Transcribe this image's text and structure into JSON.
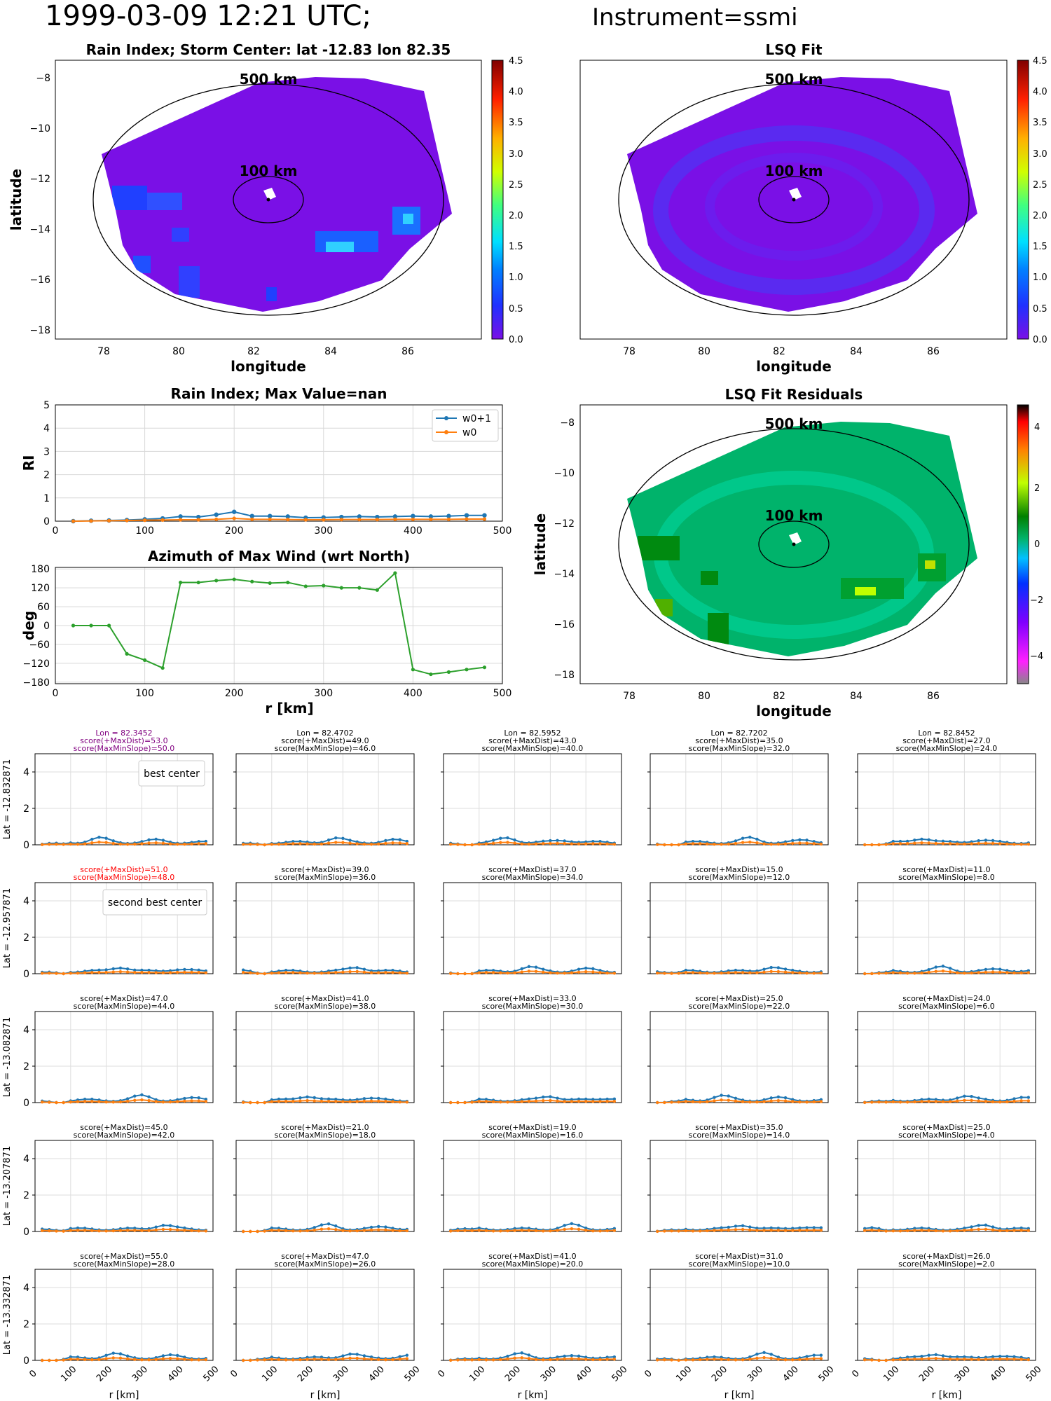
{
  "figure": {
    "title_main": "1999-03-09 12:21 UTC;",
    "title_instr": "Instrument=ssmi"
  },
  "maps": {
    "rain_title": "Rain Index; Storm Center: lat -12.83 lon 82.35",
    "lsq_title": "LSQ Fit",
    "resid_title": "LSQ Fit Residuals",
    "xlabel": "longitude",
    "ylabel": "latitude",
    "label_500": "500 km",
    "label_100": "100 km",
    "lon_ticks": [
      "78",
      "80",
      "82",
      "84",
      "86"
    ],
    "lat_ticks": [
      "−8",
      "−10",
      "−12",
      "−14",
      "−16",
      "−18"
    ],
    "colorbar_ticks": [
      "0.0",
      "0.5",
      "1.0",
      "1.5",
      "2.0",
      "2.5",
      "3.0",
      "3.5",
      "4.0",
      "4.5"
    ],
    "resid_colorbar_ticks": [
      "4",
      "2",
      "0",
      "−2",
      "−4"
    ],
    "colors": {
      "rain_bg": "#7a10e6",
      "resid_bg": "#00b36b"
    }
  },
  "chart_data": [
    {
      "type": "line",
      "title": "Rain Index; Max Value=nan",
      "ylabel": "RI",
      "xlim": [
        0,
        500
      ],
      "ylim": [
        0,
        5
      ],
      "yticks": [
        "0",
        "1",
        "2",
        "3",
        "4",
        "5"
      ],
      "xticks": [
        "0",
        "100",
        "200",
        "300",
        "400",
        "500"
      ],
      "legend": "top-right",
      "x": [
        20,
        40,
        60,
        80,
        100,
        120,
        140,
        160,
        180,
        200,
        220,
        240,
        260,
        280,
        300,
        320,
        340,
        360,
        380,
        400,
        420,
        440,
        460,
        480
      ],
      "series": [
        {
          "name": "w0+1",
          "color": "#1f77b4",
          "marker": "star",
          "values": [
            0.0,
            0.02,
            0.03,
            0.05,
            0.08,
            0.12,
            0.2,
            0.18,
            0.28,
            0.4,
            0.22,
            0.22,
            0.2,
            0.15,
            0.16,
            0.18,
            0.2,
            0.18,
            0.2,
            0.22,
            0.2,
            0.22,
            0.25,
            0.25
          ]
        },
        {
          "name": "w0",
          "color": "#ff7f0e",
          "marker": "dot",
          "values": [
            0.0,
            0.01,
            0.02,
            0.03,
            0.04,
            0.05,
            0.06,
            0.06,
            0.08,
            0.12,
            0.08,
            0.08,
            0.07,
            0.06,
            0.06,
            0.07,
            0.07,
            0.07,
            0.08,
            0.08,
            0.08,
            0.08,
            0.09,
            0.09
          ]
        }
      ]
    },
    {
      "type": "line",
      "title": "Azimuth of Max Wind (wrt North)",
      "xlabel": "r [km]",
      "ylabel": "deg",
      "xlim": [
        0,
        500
      ],
      "ylim": [
        -185,
        185
      ],
      "yticks": [
        "180",
        "120",
        "60",
        "0",
        "−60",
        "−120",
        "−180"
      ],
      "xticks": [
        "0",
        "100",
        "200",
        "300",
        "400",
        "500"
      ],
      "x": [
        20,
        40,
        60,
        80,
        100,
        120,
        140,
        160,
        180,
        200,
        220,
        240,
        260,
        280,
        300,
        320,
        340,
        360,
        380,
        400,
        420,
        440,
        460,
        480
      ],
      "series": [
        {
          "color": "#2ca02c",
          "values": [
            0,
            0,
            0,
            -90,
            -110,
            -135,
            137,
            137,
            143,
            147,
            140,
            135,
            137,
            125,
            127,
            120,
            120,
            113,
            167,
            -140,
            -155,
            -148,
            -140,
            -133
          ]
        }
      ]
    }
  ],
  "grid": {
    "xlabel": "r [km]",
    "yticks": [
      "0",
      "2",
      "4"
    ],
    "xticks": [
      "0",
      "100",
      "200",
      "300",
      "400",
      "500"
    ],
    "lon_labels": [
      "Lon = 82.3452",
      "Lon = 82.4702",
      "Lon = 82.5952",
      "Lon = 82.7202",
      "Lon = 82.8452"
    ],
    "lat_labels": [
      "Lat = -12.832871",
      "Lat = -12.957871",
      "Lat = -13.082871",
      "Lat = -13.207871",
      "Lat = -13.332871"
    ],
    "legend_best": "best center",
    "legend_second": "second best center",
    "scores": [
      [
        [
          "score(+MaxDist)=53.0",
          "score(MaxMinSlope)=50.0"
        ],
        [
          "score(+MaxDist)=49.0",
          "score(MaxMinSlope)=46.0"
        ],
        [
          "score(+MaxDist)=43.0",
          "score(MaxMinSlope)=40.0"
        ],
        [
          "score(+MaxDist)=35.0",
          "score(MaxMinSlope)=32.0"
        ],
        [
          "score(+MaxDist)=27.0",
          "score(MaxMinSlope)=24.0"
        ]
      ],
      [
        [
          "score(+MaxDist)=51.0",
          "score(MaxMinSlope)=48.0"
        ],
        [
          "score(+MaxDist)=39.0",
          "score(MaxMinSlope)=36.0"
        ],
        [
          "score(+MaxDist)=37.0",
          "score(MaxMinSlope)=34.0"
        ],
        [
          "score(+MaxDist)=15.0",
          "score(MaxMinSlope)=12.0"
        ],
        [
          "score(+MaxDist)=11.0",
          "score(MaxMinSlope)=8.0"
        ]
      ],
      [
        [
          "score(+MaxDist)=47.0",
          "score(MaxMinSlope)=44.0"
        ],
        [
          "score(+MaxDist)=41.0",
          "score(MaxMinSlope)=38.0"
        ],
        [
          "score(+MaxDist)=33.0",
          "score(MaxMinSlope)=30.0"
        ],
        [
          "score(+MaxDist)=25.0",
          "score(MaxMinSlope)=22.0"
        ],
        [
          "score(+MaxDist)=24.0",
          "score(MaxMinSlope)=6.0"
        ]
      ],
      [
        [
          "score(+MaxDist)=45.0",
          "score(MaxMinSlope)=42.0"
        ],
        [
          "score(+MaxDist)=21.0",
          "score(MaxMinSlope)=18.0"
        ],
        [
          "score(+MaxDist)=19.0",
          "score(MaxMinSlope)=16.0"
        ],
        [
          "score(+MaxDist)=35.0",
          "score(MaxMinSlope)=14.0"
        ],
        [
          "score(+MaxDist)=25.0",
          "score(MaxMinSlope)=4.0"
        ]
      ],
      [
        [
          "score(+MaxDist)=55.0",
          "score(MaxMinSlope)=28.0"
        ],
        [
          "score(+MaxDist)=47.0",
          "score(MaxMinSlope)=26.0"
        ],
        [
          "score(+MaxDist)=41.0",
          "score(MaxMinSlope)=20.0"
        ],
        [
          "score(+MaxDist)=31.0",
          "score(MaxMinSlope)=10.0"
        ],
        [
          "score(+MaxDist)=26.0",
          "score(MaxMinSlope)=2.0"
        ]
      ]
    ],
    "colors": {
      "best": "#800080",
      "second": "#ff0000",
      "normal": "#000000",
      "w1": "#1f77b4",
      "w0": "#ff7f0e"
    }
  }
}
